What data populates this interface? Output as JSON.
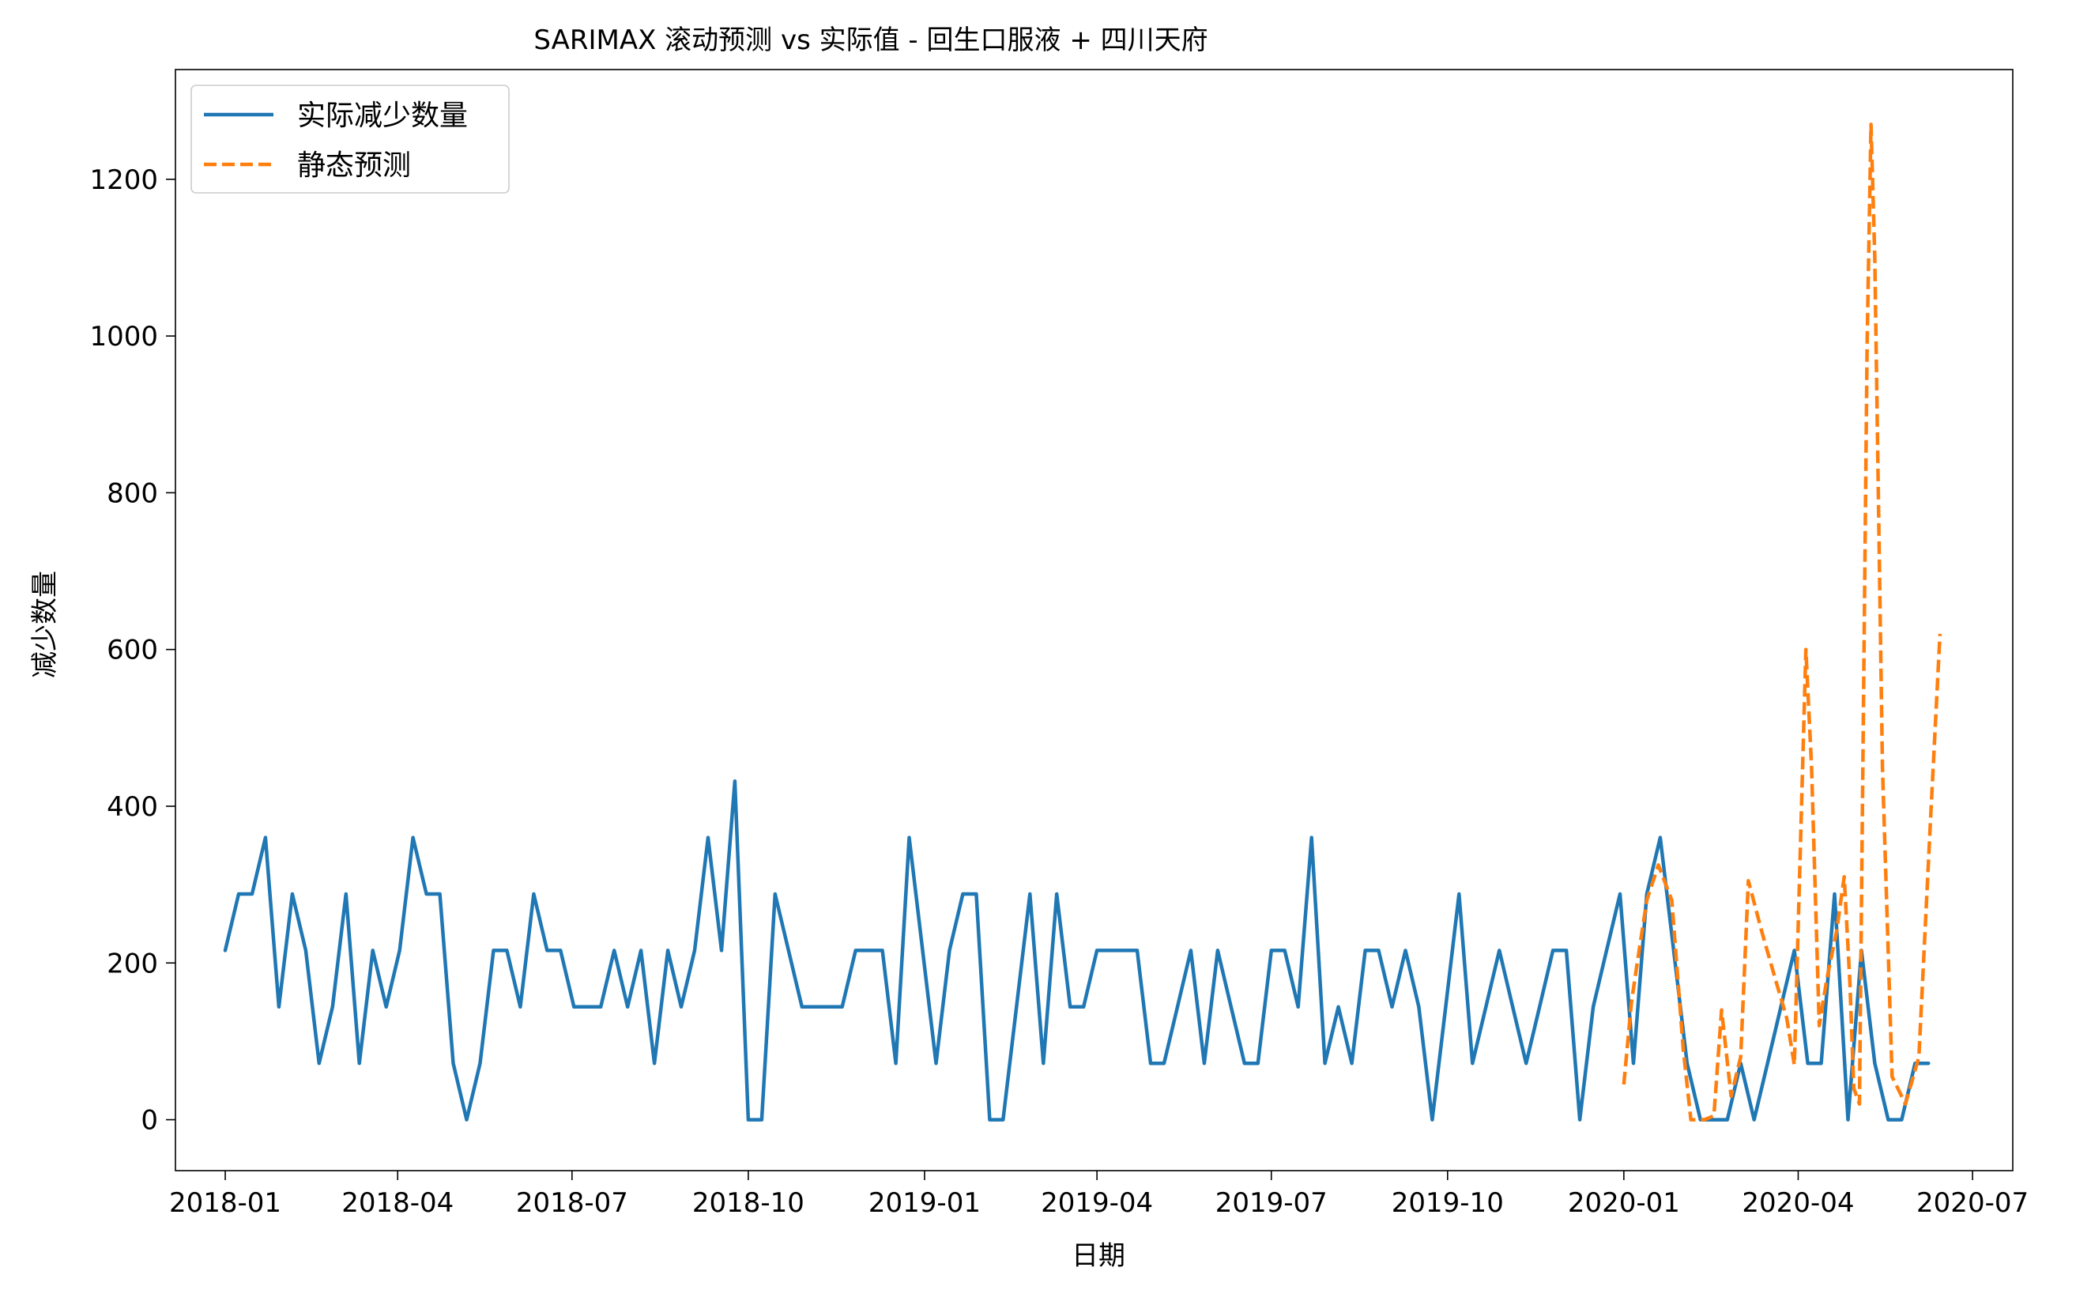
{
  "chart_data": {
    "type": "line",
    "title": "SARIMAX 滚动预测 vs 实际值 - 回生口服液 + 四川天府",
    "xlabel": "日期",
    "ylabel": "减少数量",
    "x_range": [
      "2017-12-06",
      "2020-07-22"
    ],
    "ylim": [
      -65,
      1340
    ],
    "x_ticks": [
      "2018-01",
      "2018-04",
      "2018-07",
      "2018-10",
      "2019-01",
      "2019-04",
      "2019-07",
      "2019-10",
      "2020-01",
      "2020-04",
      "2020-07"
    ],
    "y_ticks": [
      0,
      200,
      400,
      600,
      800,
      1000,
      1200
    ],
    "grid": false,
    "legend_position": "top-left",
    "series": [
      {
        "name": "实际减少数量",
        "color": "#1f77b4",
        "style": "solid",
        "x_start": "2018-01-01",
        "x_step_days": 7,
        "values": [
          216,
          288,
          288,
          360,
          144,
          288,
          216,
          72,
          144,
          288,
          72,
          216,
          144,
          216,
          360,
          288,
          288,
          72,
          0,
          72,
          216,
          216,
          144,
          288,
          216,
          216,
          144,
          144,
          144,
          216,
          144,
          216,
          72,
          216,
          144,
          216,
          360,
          216,
          432,
          0,
          0,
          288,
          216,
          144,
          144,
          144,
          144,
          216,
          216,
          216,
          72,
          360,
          216,
          72,
          216,
          288,
          288,
          0,
          0,
          144,
          288,
          72,
          288,
          144,
          144,
          216,
          216,
          216,
          216,
          72,
          72,
          144,
          216,
          72,
          216,
          144,
          72,
          72,
          216,
          216,
          144,
          360,
          72,
          144,
          72,
          216,
          216,
          144,
          216,
          144,
          0,
          144,
          288,
          72,
          144,
          216,
          144,
          72,
          144,
          216,
          216,
          0,
          144,
          216,
          288,
          72,
          288,
          360,
          216,
          72,
          0,
          0,
          0,
          72,
          0,
          72,
          144,
          216,
          72,
          72,
          288,
          0,
          216,
          72,
          0,
          0,
          72,
          72
        ]
      },
      {
        "name": "静态预测",
        "color": "#ff7f0e",
        "style": "dashed",
        "points": [
          [
            "2020-01-01",
            45
          ],
          [
            "2020-01-05",
            150
          ],
          [
            "2020-01-08",
            200
          ],
          [
            "2020-01-13",
            280
          ],
          [
            "2020-01-19",
            325
          ],
          [
            "2020-01-26",
            280
          ],
          [
            "2020-02-01",
            90
          ],
          [
            "2020-02-05",
            0
          ],
          [
            "2020-02-12",
            0
          ],
          [
            "2020-02-17",
            5
          ],
          [
            "2020-02-21",
            140
          ],
          [
            "2020-02-26",
            30
          ],
          [
            "2020-03-02",
            80
          ],
          [
            "2020-03-06",
            305
          ],
          [
            "2020-03-13",
            240
          ],
          [
            "2020-03-20",
            180
          ],
          [
            "2020-03-26",
            130
          ],
          [
            "2020-03-30",
            70
          ],
          [
            "2020-04-05",
            600
          ],
          [
            "2020-04-08",
            450
          ],
          [
            "2020-04-12",
            120
          ],
          [
            "2020-04-16",
            180
          ],
          [
            "2020-04-21",
            240
          ],
          [
            "2020-04-25",
            310
          ],
          [
            "2020-04-28",
            175
          ],
          [
            "2020-04-30",
            40
          ],
          [
            "2020-05-03",
            20
          ],
          [
            "2020-05-07",
            990
          ],
          [
            "2020-05-09",
            1270
          ],
          [
            "2020-05-11",
            1100
          ],
          [
            "2020-05-15",
            450
          ],
          [
            "2020-05-20",
            55
          ],
          [
            "2020-05-27",
            20
          ],
          [
            "2020-06-03",
            80
          ],
          [
            "2020-06-09",
            380
          ],
          [
            "2020-06-14",
            620
          ]
        ]
      }
    ]
  }
}
